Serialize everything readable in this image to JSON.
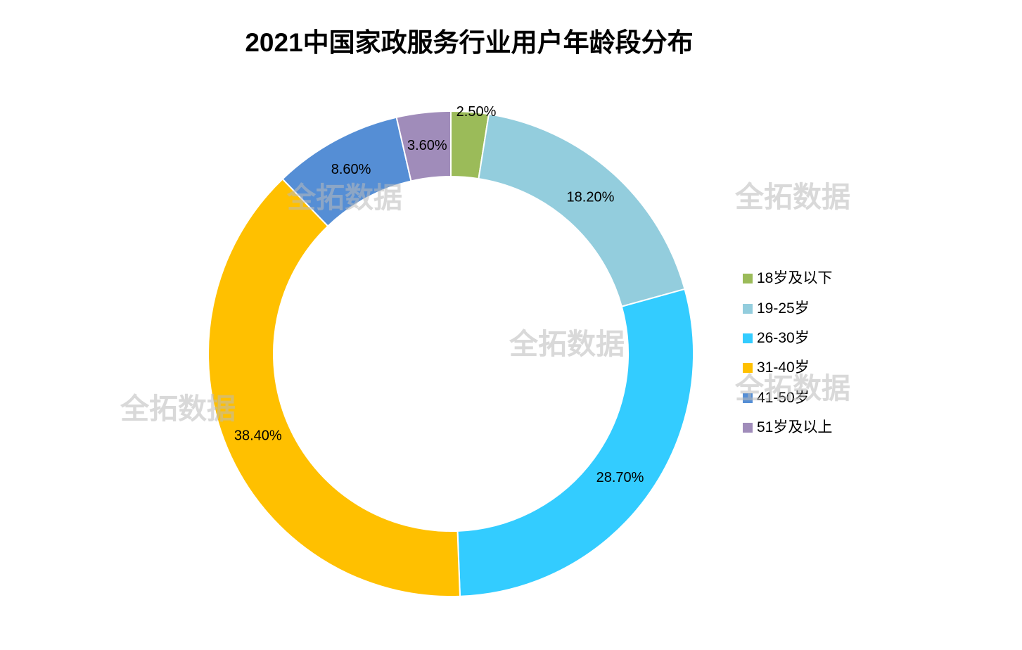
{
  "chart_data": {
    "type": "pie",
    "donut": true,
    "title": "2021中国家政服务行业用户年龄段分布",
    "categories": [
      "18岁及以下",
      "19-25岁",
      "26-30岁",
      "31-40岁",
      "41-50岁",
      "51岁及以上"
    ],
    "values": [
      2.5,
      18.2,
      28.7,
      38.4,
      8.6,
      3.6
    ],
    "labels": [
      "2.50%",
      "18.20%",
      "28.70%",
      "38.40%",
      "8.60%",
      "3.60%"
    ],
    "colors": [
      "#9BBB59",
      "#93CDDD",
      "#33CCFF",
      "#FFC000",
      "#558ED5",
      "#A08CBA"
    ],
    "legend_position": "right"
  },
  "watermark": {
    "text": "全拓数据"
  }
}
